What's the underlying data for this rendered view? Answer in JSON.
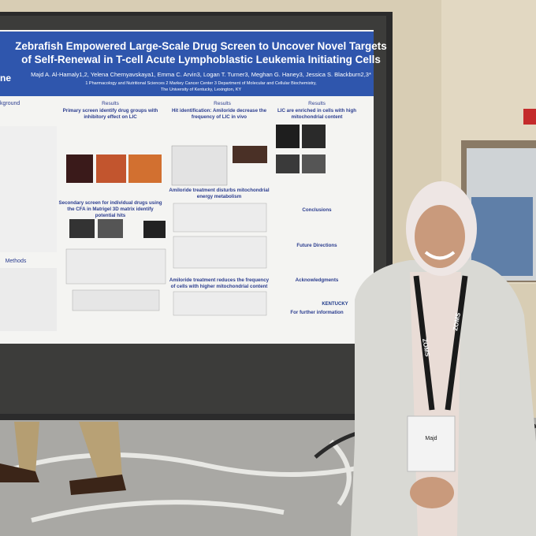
{
  "poster": {
    "title_lines": [
      "Zebrafish Empowered Large-Scale Drug Screen to Uncover Novel Targets",
      "of Self-Renewal in T-cell Acute Lymphoblastic Leukemia Initiating Cells"
    ],
    "authors": "Majd A. Al-Hamaly1,2, Yelena Chernyavskaya1, Emma C. Arvin3, Logan T. Turner3, Meghan G. Haney3, Jessica S. Blackburn2,3*",
    "affiliations": [
      "1 Pharmacology and Nutritional Sciences 2 Markey Cancer Center 3 Department of Molecular and Cellular Biochemistry,",
      "The University of Kentucky, Lexington, KY"
    ],
    "left_fragments": [
      "ne",
      "kground",
      "Methods"
    ],
    "results_labels": [
      "Results",
      "Results",
      "Results"
    ],
    "headings": [
      {
        "lines": [
          "Primary screen identify drug groups with",
          "inhibitory effect on LIC"
        ]
      },
      {
        "lines": [
          "Hit identification: Amiloride decrease the",
          "frequency of LIC in vivo"
        ]
      },
      {
        "lines": [
          "LIC are enriched in cells with high",
          "mitochondrial content"
        ]
      },
      {
        "lines": [
          "Secondary screen for individual drugs using",
          "the CFA in Matrigel 3D matrix identify",
          "potential hits"
        ]
      },
      {
        "lines": [
          "Amiloride treatment disturbs mitochondrial",
          "energy metabolism"
        ]
      },
      {
        "lines": [
          "Amiloride treatment reduces the frequency",
          "of cells with higher mitochondrial content"
        ]
      }
    ],
    "side_headings": [
      "Conclusions",
      "Future Directions",
      "Acknowledgments",
      "For further information"
    ],
    "logo": "KENTUCKY"
  },
  "badge": {
    "lanyard": "ZOMS",
    "name": "Majd"
  }
}
